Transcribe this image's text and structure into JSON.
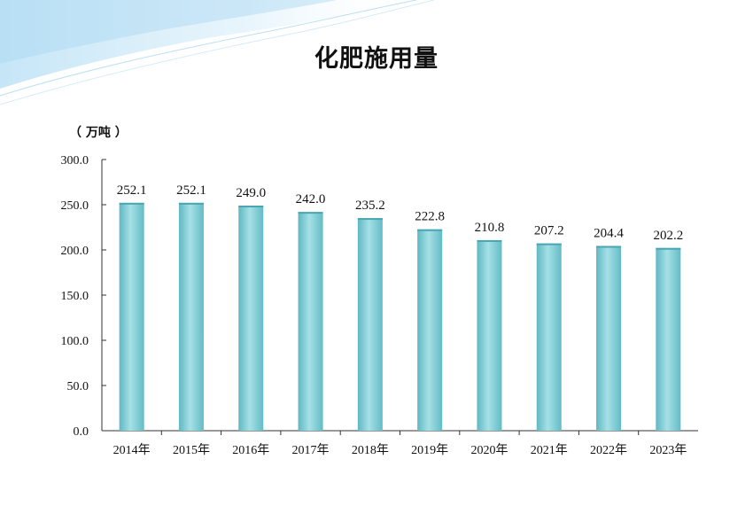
{
  "chart_data": {
    "type": "bar",
    "title": "化肥施用量",
    "unit_label": "（ 万吨 ）",
    "categories": [
      "2014年",
      "2015年",
      "2016年",
      "2017年",
      "2018年",
      "2019年",
      "2020年",
      "2021年",
      "2022年",
      "2023年"
    ],
    "values": [
      252.1,
      252.1,
      249.0,
      242.0,
      235.2,
      222.8,
      210.8,
      207.2,
      204.4,
      202.2
    ],
    "value_labels": [
      "252.1",
      "252.1",
      "249.0",
      "242.0",
      "235.2",
      "222.8",
      "210.8",
      "207.2",
      "204.4",
      "202.2"
    ],
    "ylim": [
      0,
      300
    ],
    "y_ticks": [
      0,
      50,
      100,
      150,
      200,
      250,
      300
    ],
    "y_tick_labels": [
      "0.0",
      "50.0",
      "100.0",
      "150.0",
      "200.0",
      "250.0",
      "300.0"
    ],
    "grid": false,
    "bar_color": "#7ccbd3"
  }
}
